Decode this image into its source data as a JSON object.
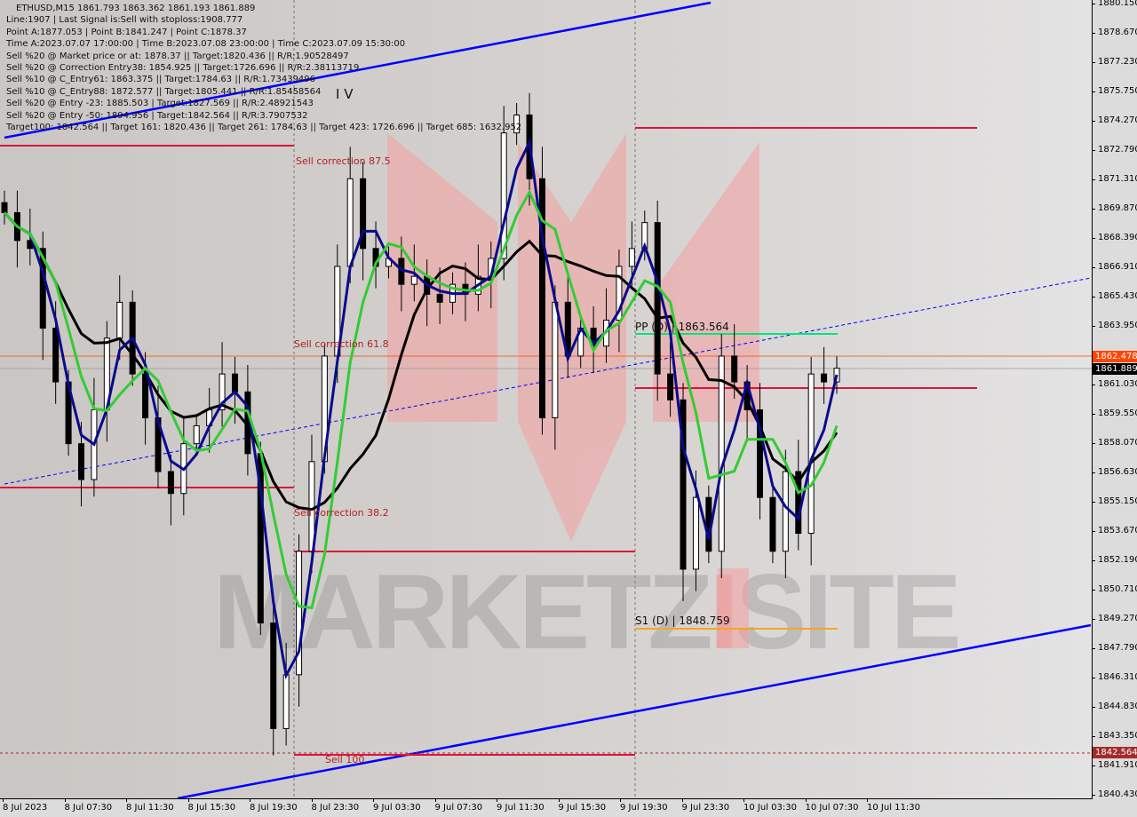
{
  "header": {
    "symbol_line": "ETHUSD,M15  1861.793 1863.362 1861.193 1861.889",
    "info_lines": [
      "Line:1907 | Last Signal is:Sell with stoploss:1908.777",
      "Point A:1877.053 | Point B:1841.247 | Point C:1878.37",
      "Time A:2023.07.07 17:00:00 | Time B:2023.07.08 23:00:00 | Time C:2023.07.09 15:30:00",
      "Sell %20 @ Market price or at: 1878.37 || Target:1820.436 || R/R:1.90528497",
      "Sell %20 @ Correction Entry38: 1854.925 || Target:1726.696 || R/R:2.38113719",
      "Sell %10 @ C_Entry61: 1863.375 || Target:1784.63 || R/R:1.73439496",
      "Sell %10 @ C_Entry88: 1872.577 || Target:1805.441 || R/R:1.85458564",
      "Sell %20 @ Entry -23: 1885.503 | Target:1827.569 || R/R:2.48921543",
      "Sell %20 @ Entry -50: 1894.956 | Target:1842.564 || R/R:3.7907532",
      "Target100: 1842.564 || Target 161: 1820.436 || Target 261: 1784.63 || Target 423: 1726.696 || Target 685: 1632.952"
    ]
  },
  "watermark": "MARKETZISITE",
  "wave_label": "I V",
  "colors": {
    "bull": "#ffffff",
    "bear": "#000000",
    "ma_slow": "#000000",
    "ma_fast": "#0a0a8c",
    "ma_mid": "#33cc33",
    "level": "#dc143c",
    "pivot": "#00e676",
    "support": "#f5a623",
    "channel": "#0000ff",
    "bid": "#000000",
    "ask": "#ff4500",
    "target": "#a52a2a"
  },
  "chart_data": {
    "type": "candlestick",
    "title": "ETHUSD,M15",
    "ylim": [
      1840.43,
      1880.15
    ],
    "y_ticks": [
      "1880.150",
      "1878.670",
      "1877.230",
      "1875.750",
      "1874.270",
      "1872.790",
      "1871.310",
      "1869.870",
      "1868.390",
      "1866.910",
      "1865.430",
      "1863.950",
      "1861.030",
      "1859.550",
      "1858.070",
      "1856.630",
      "1855.150",
      "1853.670",
      "1852.190",
      "1850.710",
      "1849.270",
      "1847.790",
      "1846.310",
      "1844.830",
      "1843.350",
      "1841.910",
      "1840.430"
    ],
    "x_ticks": [
      "8 Jul 2023",
      "8 Jul 07:30",
      "8 Jul 11:30",
      "8 Jul 15:30",
      "8 Jul 19:30",
      "8 Jul 23:30",
      "9 Jul 03:30",
      "9 Jul 07:30",
      "9 Jul 11:30",
      "9 Jul 15:30",
      "9 Jul 19:30",
      "9 Jul 23:30",
      "10 Jul 03:30",
      "10 Jul 07:30",
      "10 Jul 11:30"
    ],
    "closes": [
      1869.7,
      1868.3,
      1867.9,
      1863.9,
      1861.2,
      1858.1,
      1856.3,
      1859.8,
      1863.4,
      1865.2,
      1861.6,
      1859.4,
      1856.7,
      1855.6,
      1858.1,
      1859.0,
      1859.8,
      1861.6,
      1860.7,
      1857.6,
      1849.1,
      1843.8,
      1846.5,
      1852.7,
      1857.2,
      1862.5,
      1867.0,
      1871.4,
      1867.9,
      1867.0,
      1867.4,
      1866.1,
      1866.5,
      1865.6,
      1865.2,
      1866.1,
      1865.6,
      1866.5,
      1867.4,
      1873.7,
      1874.6,
      1871.4,
      1859.4,
      1865.2,
      1862.5,
      1863.9,
      1863.0,
      1864.3,
      1867.0,
      1867.9,
      1869.2,
      1861.6,
      1860.3,
      1851.8,
      1855.4,
      1852.7,
      1862.5,
      1861.2,
      1859.8,
      1855.4,
      1852.7,
      1856.7,
      1853.6,
      1861.6,
      1861.2,
      1861.889
    ],
    "price_labels": {
      "ask": "1862.478",
      "bid": "1861.889",
      "target": "1842.564"
    },
    "levels": [
      {
        "label": "Sell correction 87.5",
        "price": 1873.05
      },
      {
        "label": "Sell correction 61.8",
        "price": 1862.5
      },
      {
        "label": "Sell correction 38.2",
        "price": 1855.9
      },
      {
        "label": "Sell 100",
        "price": 1842.4
      }
    ],
    "pivots": [
      {
        "label": "PP (D) | 1863.564",
        "price": 1863.564
      },
      {
        "label": "S1 (D) | 1848.759",
        "price": 1848.759
      }
    ]
  }
}
